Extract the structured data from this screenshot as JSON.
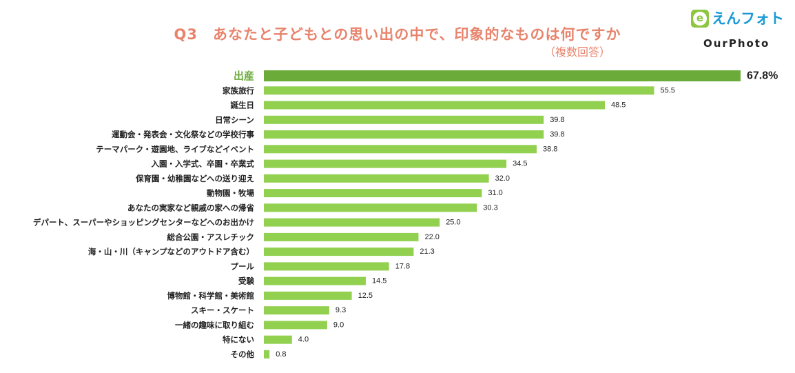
{
  "header": {
    "title": "Q3　あなたと子どもとの思い出の中で、印象的なものは何ですか",
    "subtitle": "（複数回答）"
  },
  "logo": {
    "badge": "e",
    "jp_text": "えんフォト",
    "en_text": "OurPhoto"
  },
  "colors": {
    "title": "#e8836c",
    "bar": "#92d050",
    "bar_highlight": "#6aab39",
    "label_highlight": "#6aab39",
    "label": "#222222"
  },
  "chart_data": {
    "type": "bar",
    "orientation": "horizontal",
    "categories": [
      "出産",
      "家族旅行",
      "誕生日",
      "日常シーン",
      "運動会・発表会・文化祭などの学校行事",
      "テーマパーク・遊園地、ライブなどイベント",
      "入園・入学式、卒園・卒業式",
      "保育園・幼稚園などへの送り迎え",
      "動物園・牧場",
      "あなたの実家など親戚の家への帰省",
      "デパート、スーパーやショッピングセンターなどへのお出かけ",
      "総合公園・アスレチック",
      "海・山・川（キャンプなどのアウトドア含む）",
      "プール",
      "受験",
      "博物館・科学館・美術館",
      "スキー・スケート",
      "一緒の趣味に取り組む",
      "特にない",
      "その他"
    ],
    "values": [
      67.8,
      55.5,
      48.5,
      39.8,
      39.8,
      38.8,
      34.5,
      32.0,
      31.0,
      30.3,
      25.0,
      22.0,
      21.3,
      17.8,
      14.5,
      12.5,
      9.3,
      9.0,
      4.0,
      0.8
    ],
    "value_labels": [
      "67.8%",
      "55.5",
      "48.5",
      "39.8",
      "39.8",
      "38.8",
      "34.5",
      "32.0",
      "31.0",
      "30.3",
      "25.0",
      "22.0",
      "21.3",
      "17.8",
      "14.5",
      "12.5",
      "9.3",
      "9.0",
      "4.0",
      "0.8"
    ],
    "highlight_index": 0,
    "xlim": [
      0,
      67.8
    ],
    "grid": false
  }
}
